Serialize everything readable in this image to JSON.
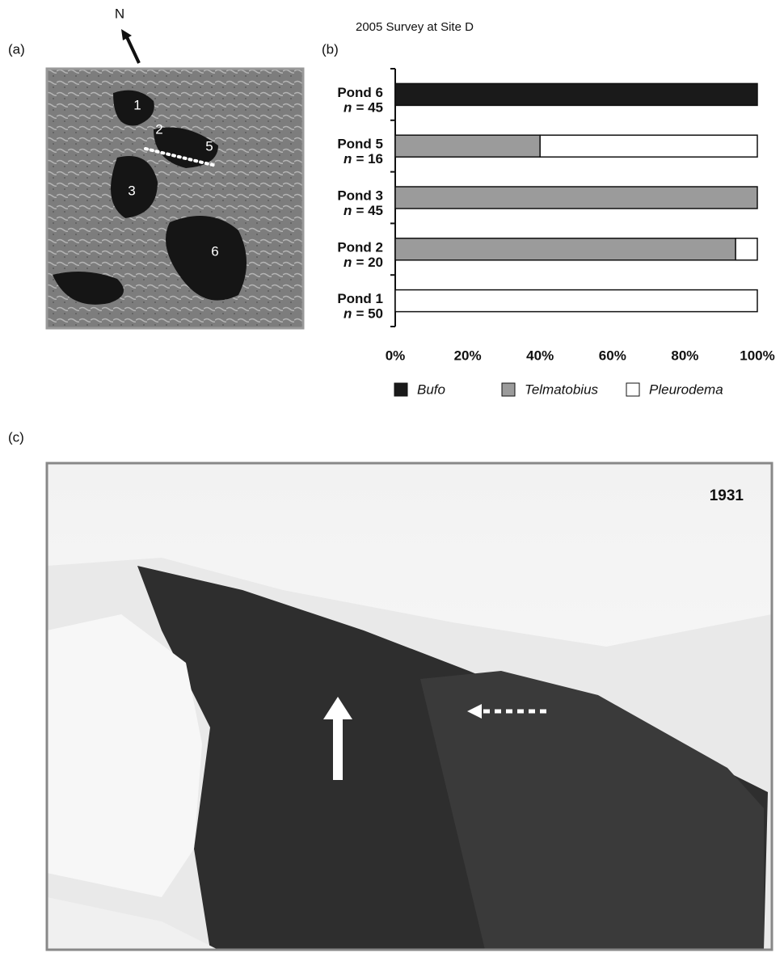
{
  "chart_data": {
    "type": "stacked-barh",
    "title": "2005 Survey at Site D",
    "categories": [
      "Pond 6",
      "Pond 5",
      "Pond 3",
      "Pond 2",
      "Pond 1"
    ],
    "n_symbol": "n",
    "n_labels": [
      "= 45",
      "= 16",
      "= 45",
      "= 20",
      "= 50"
    ],
    "series": [
      {
        "name": "Bufo",
        "color": "#1a1a1a",
        "values": [
          100,
          0,
          0,
          0,
          0
        ]
      },
      {
        "name": "Telmatobius",
        "color": "#9b9b9b",
        "values": [
          0,
          40,
          100,
          94,
          0
        ]
      },
      {
        "name": "Pleurodema",
        "color": "#ffffff",
        "values": [
          0,
          60,
          0,
          6,
          100
        ]
      }
    ],
    "xlim": [
      0,
      100
    ],
    "xticks": [
      {
        "value": 0,
        "label": "0%"
      },
      {
        "value": 20,
        "label": "20%"
      },
      {
        "value": 40,
        "label": "40%"
      },
      {
        "value": 60,
        "label": "60%"
      },
      {
        "value": 80,
        "label": "80%"
      },
      {
        "value": 100,
        "label": "100%"
      }
    ],
    "grid": false,
    "legend": "bottom"
  },
  "panels": {
    "a": "(a)",
    "b": "(b)",
    "c": "(c)"
  },
  "map": {
    "north": "N",
    "ponds": [
      "1",
      "2",
      "5",
      "3",
      "6"
    ]
  },
  "photo": {
    "year": "1931"
  }
}
